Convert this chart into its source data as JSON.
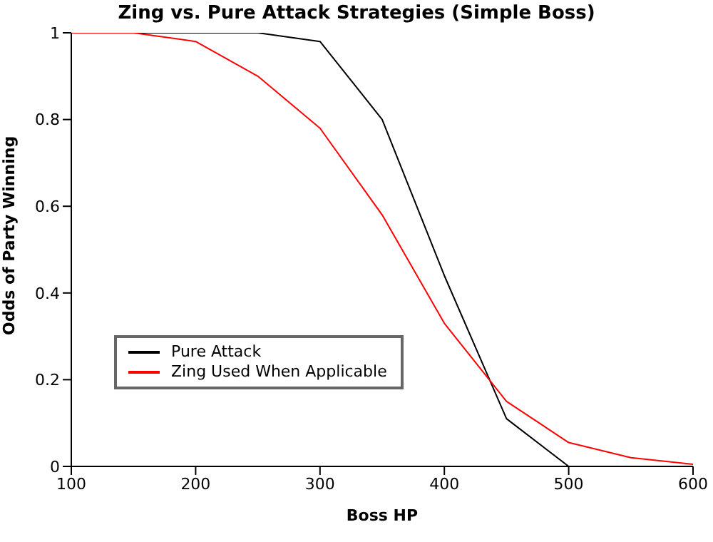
{
  "chart_data": {
    "type": "line",
    "title": "Zing vs. Pure Attack Strategies (Simple Boss)",
    "xlabel": "Boss HP",
    "ylabel": "Odds of Party Winning",
    "x": [
      100,
      150,
      200,
      250,
      300,
      350,
      400,
      450,
      500,
      550,
      600
    ],
    "series": [
      {
        "name": "Pure Attack",
        "color": "#000000",
        "values": [
          1,
          1,
          1,
          1,
          0.98,
          0.8,
          0.44,
          0.11,
          0,
          0,
          0
        ]
      },
      {
        "name": "Zing Used When Applicable",
        "color": "#ff0000",
        "values": [
          1,
          1,
          0.98,
          0.9,
          0.78,
          0.58,
          0.33,
          0.15,
          0.055,
          0.02,
          0.005
        ]
      }
    ],
    "xlim": [
      100,
      600
    ],
    "xticks": [
      100,
      200,
      300,
      400,
      500,
      600
    ],
    "ylim": [
      0,
      1
    ],
    "yticks": [
      0,
      0.2,
      0.4,
      0.6,
      0.8,
      1
    ],
    "grid": false,
    "legend": "bottom left",
    "marker": "none",
    "line_style": "solid"
  }
}
